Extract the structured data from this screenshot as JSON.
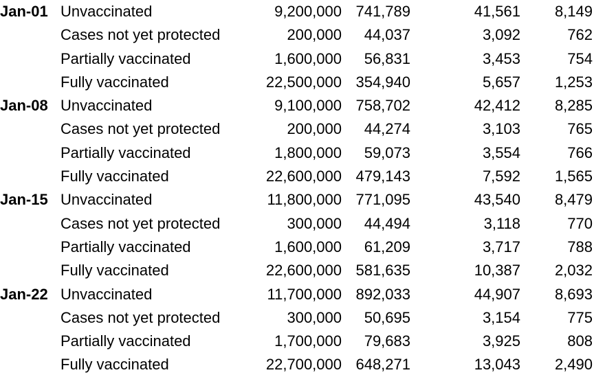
{
  "colors": {
    "text": "#000000",
    "background": "#ffffff"
  },
  "table": {
    "groups": [
      {
        "date": "Jan-01",
        "rows": [
          {
            "label": "Unvaccinated",
            "values": [
              "9,200,000",
              "741,789",
              "41,561",
              "8,149"
            ]
          },
          {
            "label": "Cases not yet protected",
            "values": [
              "200,000",
              "44,037",
              "3,092",
              "762"
            ]
          },
          {
            "label": "Partially vaccinated",
            "values": [
              "1,600,000",
              "56,831",
              "3,453",
              "754"
            ]
          },
          {
            "label": "Fully vaccinated",
            "values": [
              "22,500,000",
              "354,940",
              "5,657",
              "1,253"
            ]
          }
        ]
      },
      {
        "date": "Jan-08",
        "rows": [
          {
            "label": "Unvaccinated",
            "values": [
              "9,100,000",
              "758,702",
              "42,412",
              "8,285"
            ]
          },
          {
            "label": "Cases not yet protected",
            "values": [
              "200,000",
              "44,274",
              "3,103",
              "765"
            ]
          },
          {
            "label": "Partially vaccinated",
            "values": [
              "1,800,000",
              "59,073",
              "3,554",
              "766"
            ]
          },
          {
            "label": "Fully vaccinated",
            "values": [
              "22,600,000",
              "479,143",
              "7,592",
              "1,565"
            ]
          }
        ]
      },
      {
        "date": "Jan-15",
        "rows": [
          {
            "label": "Unvaccinated",
            "values": [
              "11,800,000",
              "771,095",
              "43,540",
              "8,479"
            ]
          },
          {
            "label": "Cases not yet protected",
            "values": [
              "300,000",
              "44,494",
              "3,118",
              "770"
            ]
          },
          {
            "label": "Partially vaccinated",
            "values": [
              "1,600,000",
              "61,209",
              "3,717",
              "788"
            ]
          },
          {
            "label": "Fully vaccinated",
            "values": [
              "22,600,000",
              "581,635",
              "10,387",
              "2,032"
            ]
          }
        ]
      },
      {
        "date": "Jan-22",
        "rows": [
          {
            "label": "Unvaccinated",
            "values": [
              "11,700,000",
              "892,033",
              "44,907",
              "8,693"
            ]
          },
          {
            "label": "Cases not yet protected",
            "values": [
              "300,000",
              "50,695",
              "3,154",
              "775"
            ]
          },
          {
            "label": "Partially vaccinated",
            "values": [
              "1,700,000",
              "79,683",
              "3,925",
              "808"
            ]
          },
          {
            "label": "Fully vaccinated",
            "values": [
              "22,700,000",
              "648,271",
              "13,043",
              "2,490"
            ]
          }
        ]
      }
    ]
  }
}
